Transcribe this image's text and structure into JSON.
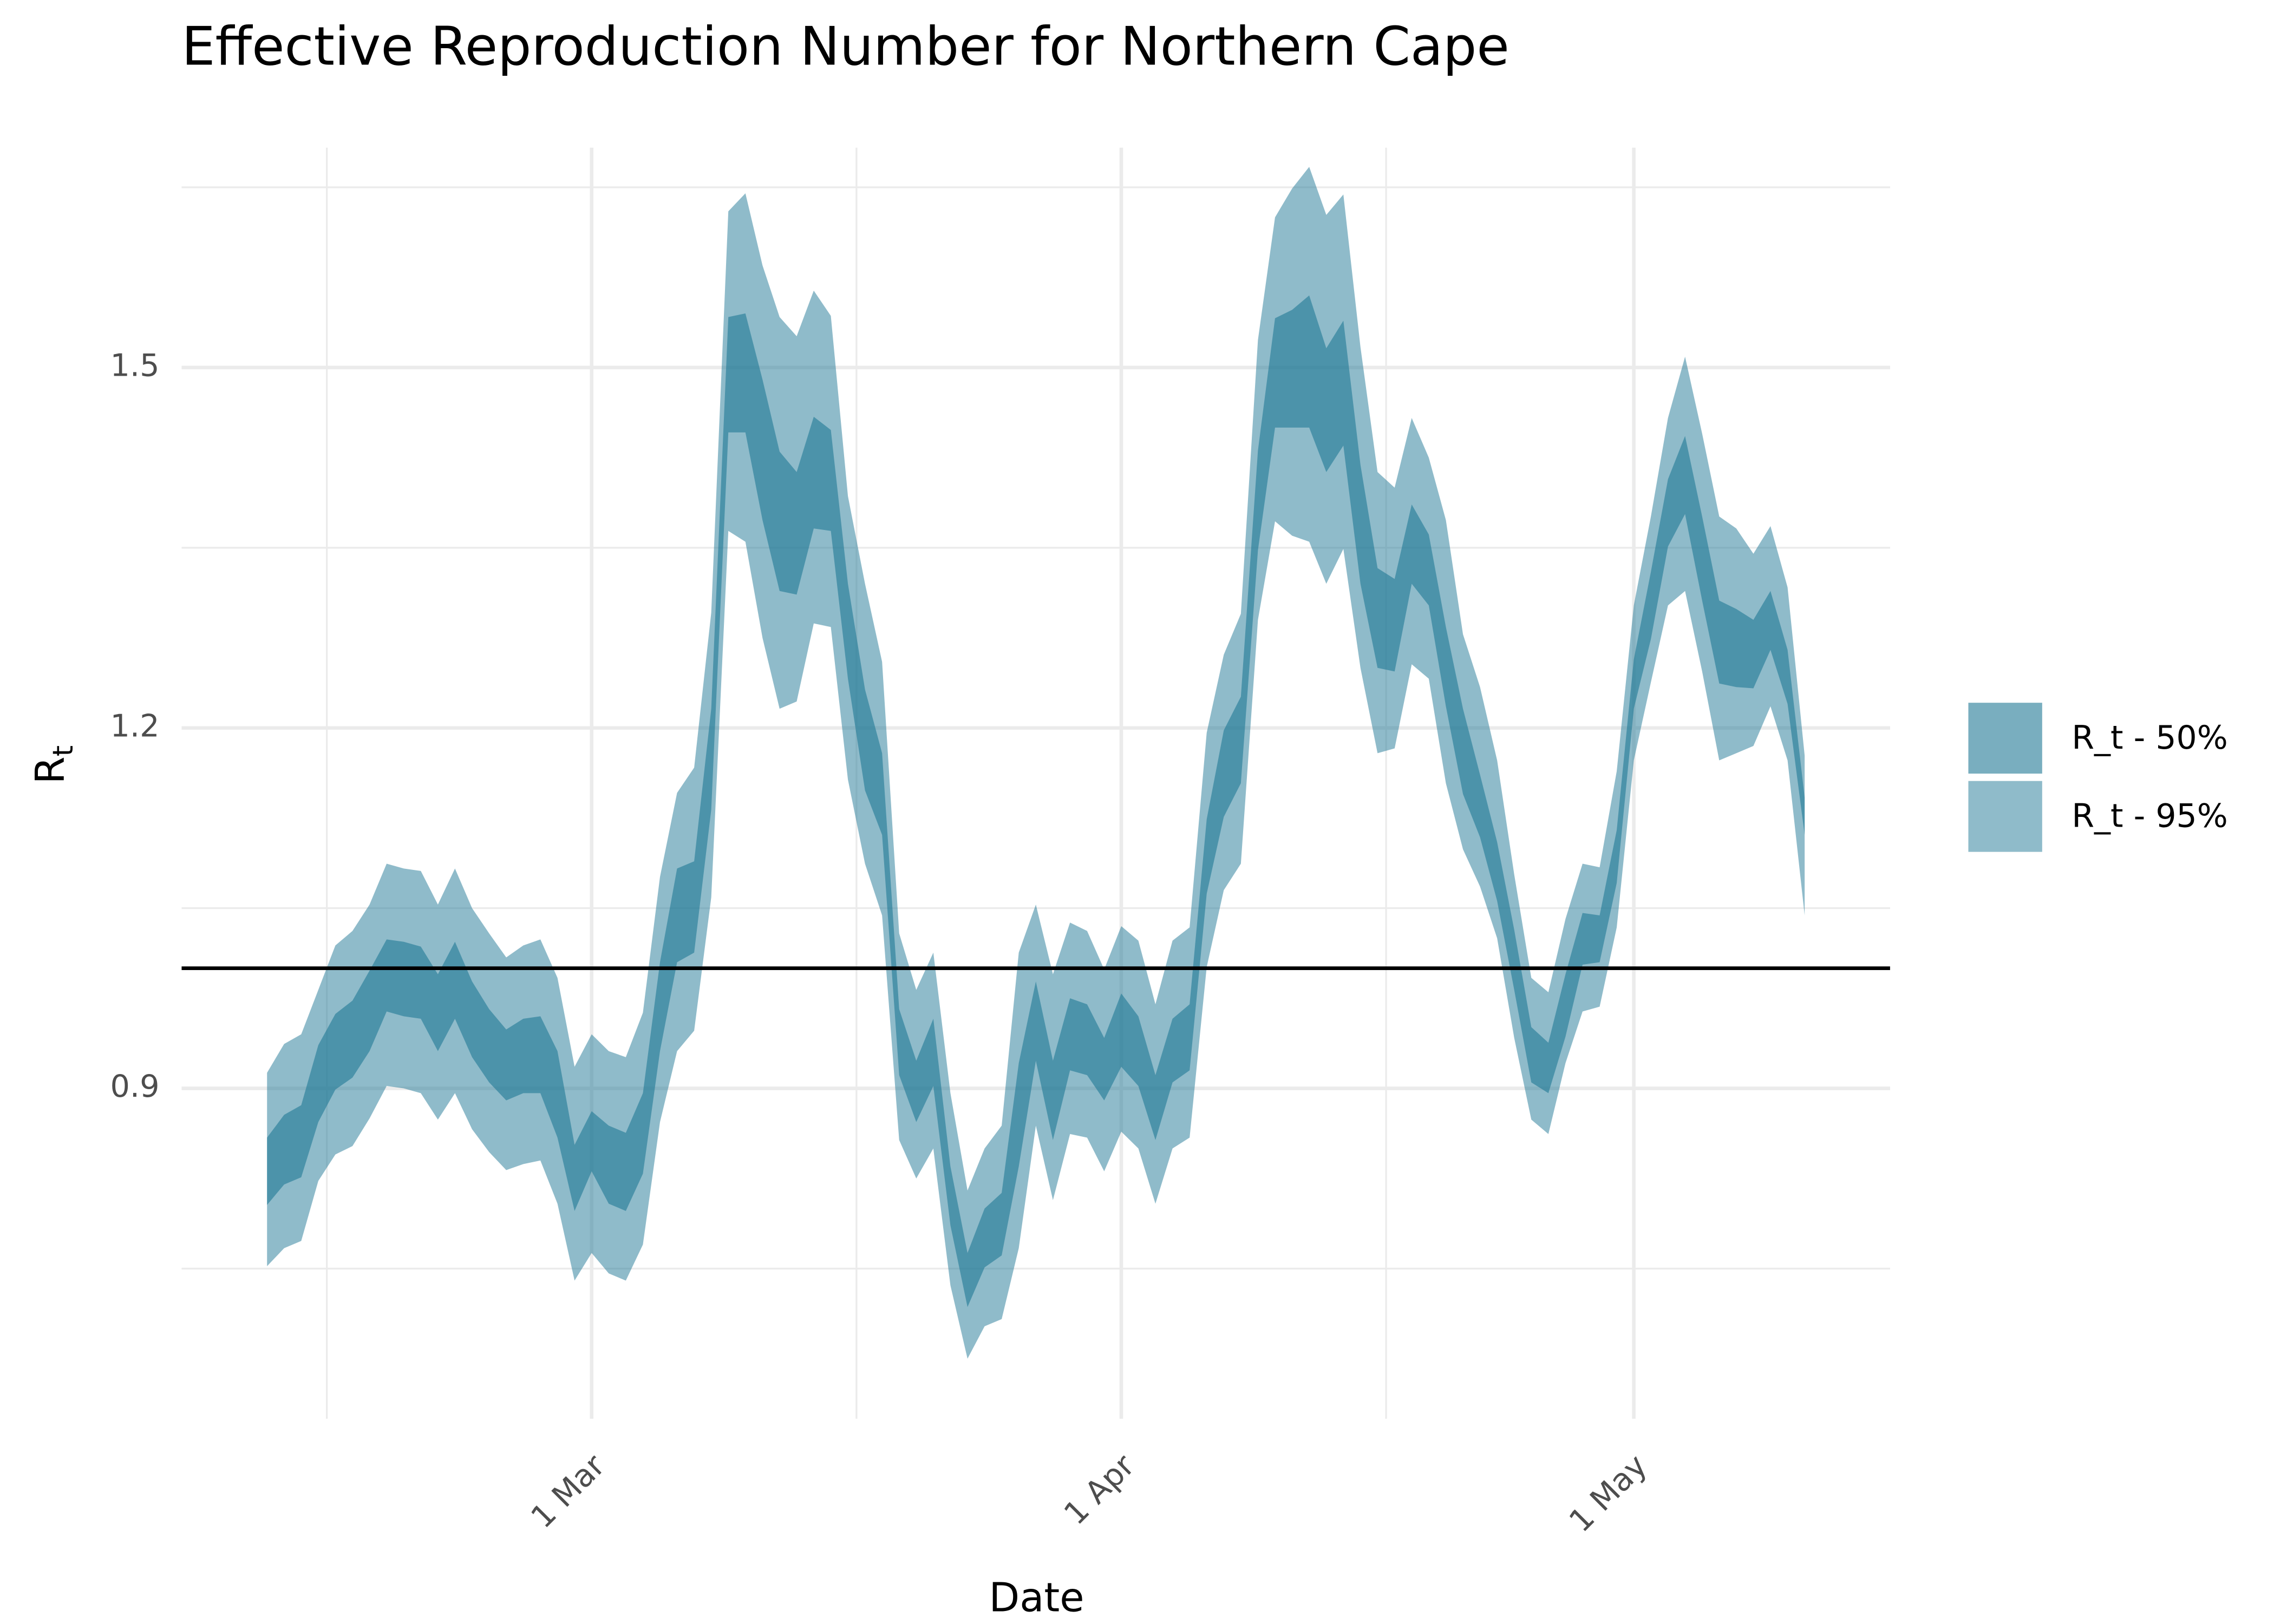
{
  "chart_data": {
    "type": "ribbon",
    "title": "Effective Reproduction Number for Northern Cape",
    "xlabel": "Date",
    "ylabel": "R",
    "ylabel_subscript": "t",
    "x": [
      "02-10",
      "02-11",
      "02-12",
      "02-13",
      "02-14",
      "02-15",
      "02-16",
      "02-17",
      "02-18",
      "02-19",
      "02-20",
      "02-21",
      "02-22",
      "02-23",
      "02-24",
      "02-25",
      "02-26",
      "02-27",
      "02-28",
      "03-01",
      "03-02",
      "03-03",
      "03-04",
      "03-05",
      "03-06",
      "03-07",
      "03-08",
      "03-09",
      "03-10",
      "03-11",
      "03-12",
      "03-13",
      "03-14",
      "03-15",
      "03-16",
      "03-17",
      "03-18",
      "03-19",
      "03-20",
      "03-21",
      "03-22",
      "03-23",
      "03-24",
      "03-25",
      "03-26",
      "03-27",
      "03-28",
      "03-29",
      "03-30",
      "03-31",
      "04-01",
      "04-02",
      "04-03",
      "04-04",
      "04-05",
      "04-06",
      "04-07",
      "04-08",
      "04-09",
      "04-10",
      "04-11",
      "04-12",
      "04-13",
      "04-14",
      "04-15",
      "04-16",
      "04-17",
      "04-18",
      "04-19",
      "04-20",
      "04-21",
      "04-22",
      "04-23",
      "04-24",
      "04-25",
      "04-26",
      "04-27",
      "04-28",
      "04-29",
      "04-30",
      "05-01",
      "05-02",
      "05-03",
      "05-04",
      "05-05",
      "05-06",
      "05-07",
      "05-08",
      "05-09",
      "05-10",
      "05-11"
    ],
    "series": [
      {
        "name": "R_t - 50%",
        "color": "#1f7895",
        "opacity": 0.6,
        "upper": [
          0.859,
          0.878,
          0.886,
          0.936,
          0.962,
          0.973,
          0.998,
          1.024,
          1.022,
          1.018,
          0.995,
          1.022,
          0.989,
          0.966,
          0.949,
          0.958,
          0.96,
          0.931,
          0.853,
          0.881,
          0.869,
          0.863,
          0.896,
          1.005,
          1.083,
          1.089,
          1.216,
          1.542,
          1.545,
          1.49,
          1.43,
          1.413,
          1.459,
          1.448,
          1.32,
          1.232,
          1.179,
          0.966,
          0.923,
          0.958,
          0.835,
          0.763,
          0.8,
          0.813,
          0.921,
          0.989,
          0.923,
          0.975,
          0.97,
          0.942,
          0.979,
          0.96,
          0.911,
          0.958,
          0.97,
          1.124,
          1.198,
          1.226,
          1.431,
          1.541,
          1.548,
          1.56,
          1.516,
          1.539,
          1.419,
          1.333,
          1.324,
          1.386,
          1.361,
          1.284,
          1.216,
          1.161,
          1.105,
          1.032,
          0.951,
          0.938,
          0.995,
          1.046,
          1.044,
          1.115,
          1.257,
          1.33,
          1.407,
          1.443,
          1.376,
          1.306,
          1.299,
          1.29,
          1.314,
          1.265,
          1.142
        ],
        "lower": [
          0.803,
          0.82,
          0.826,
          0.872,
          0.899,
          0.909,
          0.931,
          0.964,
          0.96,
          0.958,
          0.931,
          0.958,
          0.926,
          0.905,
          0.89,
          0.896,
          0.896,
          0.859,
          0.798,
          0.831,
          0.804,
          0.798,
          0.829,
          0.931,
          1.005,
          1.013,
          1.132,
          1.446,
          1.446,
          1.373,
          1.314,
          1.311,
          1.366,
          1.364,
          1.241,
          1.148,
          1.111,
          0.911,
          0.872,
          0.902,
          0.786,
          0.718,
          0.751,
          0.761,
          0.835,
          0.923,
          0.857,
          0.915,
          0.911,
          0.89,
          0.918,
          0.902,
          0.857,
          0.905,
          0.915,
          1.062,
          1.126,
          1.154,
          1.348,
          1.45,
          1.45,
          1.45,
          1.413,
          1.435,
          1.32,
          1.25,
          1.247,
          1.32,
          1.302,
          1.218,
          1.145,
          1.109,
          1.056,
          0.982,
          0.905,
          0.896,
          0.943,
          1.003,
          1.005,
          1.071,
          1.216,
          1.274,
          1.351,
          1.378,
          1.306,
          1.237,
          1.234,
          1.233,
          1.265,
          1.22,
          1.111
        ]
      },
      {
        "name": "R_t - 95%",
        "color": "#1f7895",
        "opacity": 0.5,
        "upper": [
          0.913,
          0.937,
          0.945,
          0.982,
          1.019,
          1.031,
          1.053,
          1.087,
          1.083,
          1.081,
          1.053,
          1.083,
          1.05,
          1.029,
          1.009,
          1.019,
          1.024,
          0.992,
          0.918,
          0.945,
          0.931,
          0.926,
          0.963,
          1.076,
          1.146,
          1.167,
          1.296,
          1.63,
          1.645,
          1.585,
          1.542,
          1.526,
          1.564,
          1.543,
          1.393,
          1.32,
          1.255,
          1.029,
          0.982,
          1.013,
          0.896,
          0.815,
          0.85,
          0.869,
          1.013,
          1.053,
          0.995,
          1.038,
          1.031,
          0.999,
          1.035,
          1.023,
          0.97,
          1.023,
          1.034,
          1.196,
          1.261,
          1.295,
          1.523,
          1.625,
          1.649,
          1.667,
          1.627,
          1.644,
          1.517,
          1.413,
          1.4,
          1.458,
          1.425,
          1.373,
          1.278,
          1.234,
          1.173,
          1.078,
          0.992,
          0.98,
          1.041,
          1.087,
          1.084,
          1.164,
          1.302,
          1.376,
          1.458,
          1.509,
          1.445,
          1.376,
          1.366,
          1.345,
          1.368,
          1.317,
          1.177
        ],
        "lower": [
          0.752,
          0.767,
          0.773,
          0.823,
          0.845,
          0.852,
          0.875,
          0.902,
          0.9,
          0.896,
          0.874,
          0.896,
          0.866,
          0.847,
          0.832,
          0.837,
          0.84,
          0.804,
          0.74,
          0.763,
          0.746,
          0.74,
          0.77,
          0.872,
          0.931,
          0.948,
          1.059,
          1.364,
          1.355,
          1.275,
          1.216,
          1.222,
          1.287,
          1.284,
          1.157,
          1.087,
          1.044,
          0.857,
          0.825,
          0.85,
          0.736,
          0.675,
          0.702,
          0.708,
          0.767,
          0.869,
          0.807,
          0.862,
          0.859,
          0.831,
          0.864,
          0.85,
          0.804,
          0.85,
          0.859,
          1.001,
          1.065,
          1.087,
          1.29,
          1.372,
          1.36,
          1.355,
          1.32,
          1.349,
          1.25,
          1.179,
          1.183,
          1.253,
          1.241,
          1.154,
          1.099,
          1.068,
          1.025,
          0.942,
          0.874,
          0.862,
          0.921,
          0.964,
          0.968,
          1.034,
          1.173,
          1.238,
          1.302,
          1.314,
          1.247,
          1.173,
          1.179,
          1.185,
          1.218,
          1.173,
          1.044
        ]
      }
    ],
    "xlim": [
      "02-05",
      "05-16"
    ],
    "xticks": [
      {
        "value": "03-01",
        "label": "1 Mar"
      },
      {
        "value": "04-01",
        "label": "1 Apr"
      },
      {
        "value": "05-01",
        "label": "1 May"
      }
    ],
    "ylim": [
      0.625,
      1.683
    ],
    "yticks": [
      0.9,
      1.2,
      1.5
    ],
    "hline": 1,
    "grid": true,
    "legend": "right"
  }
}
